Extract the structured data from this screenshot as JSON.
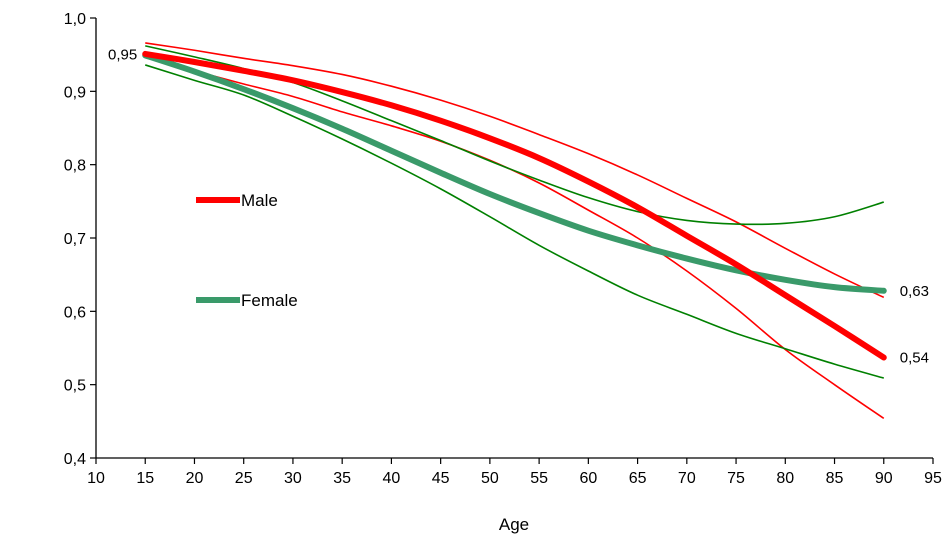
{
  "chart_data": {
    "type": "line",
    "title": "",
    "xlabel": "Age",
    "ylabel": "",
    "xlim": [
      10,
      95
    ],
    "ylim": [
      0.4,
      1.0
    ],
    "x_ticks": [
      10,
      15,
      20,
      25,
      30,
      35,
      40,
      45,
      50,
      55,
      60,
      65,
      70,
      75,
      80,
      85,
      90,
      95
    ],
    "x_tick_labels": [
      "10",
      "15",
      "20",
      "25",
      "30",
      "35",
      "40",
      "45",
      "50",
      "55",
      "60",
      "65",
      "70",
      "75",
      "80",
      "85",
      "90",
      "95"
    ],
    "y_ticks": [
      0.4,
      0.5,
      0.6,
      0.7,
      0.8,
      0.9,
      1.0
    ],
    "y_tick_labels": [
      "0,4",
      "0,5",
      "0,6",
      "0,7",
      "0,8",
      "0,9",
      "1,0"
    ],
    "grid": false,
    "legend_position": "left",
    "x": [
      15,
      20,
      25,
      30,
      35,
      40,
      45,
      50,
      55,
      60,
      65,
      70,
      75,
      80,
      85,
      90
    ],
    "series": [
      {
        "name": "Male",
        "color": "#ff0000",
        "values": [
          0.951,
          0.94,
          0.928,
          0.915,
          0.899,
          0.881,
          0.86,
          0.836,
          0.809,
          0.777,
          0.742,
          0.703,
          0.664,
          0.622,
          0.58,
          0.537
        ],
        "lower": [
          0.946,
          0.928,
          0.91,
          0.893,
          0.872,
          0.853,
          0.832,
          0.806,
          0.775,
          0.738,
          0.7,
          0.655,
          0.604,
          0.548,
          0.5,
          0.454
        ],
        "upper": [
          0.966,
          0.956,
          0.945,
          0.935,
          0.923,
          0.907,
          0.888,
          0.866,
          0.841,
          0.815,
          0.786,
          0.754,
          0.722,
          0.686,
          0.651,
          0.619
        ]
      },
      {
        "name": "Female",
        "color": "#3a9a6a",
        "ci_color": "#008000",
        "values": [
          0.949,
          0.927,
          0.903,
          0.877,
          0.849,
          0.819,
          0.789,
          0.76,
          0.734,
          0.71,
          0.69,
          0.672,
          0.656,
          0.643,
          0.633,
          0.628
        ],
        "lower": [
          0.936,
          0.915,
          0.895,
          0.866,
          0.835,
          0.802,
          0.767,
          0.729,
          0.69,
          0.655,
          0.622,
          0.596,
          0.57,
          0.549,
          0.528,
          0.509
        ],
        "upper": [
          0.962,
          0.947,
          0.931,
          0.912,
          0.887,
          0.86,
          0.833,
          0.805,
          0.779,
          0.755,
          0.736,
          0.724,
          0.719,
          0.72,
          0.729,
          0.749
        ]
      }
    ],
    "annotations": [
      {
        "text": "0,95",
        "x": 15,
        "y": 0.95,
        "series": "Male",
        "side": "left"
      },
      {
        "text": "0,63",
        "x": 90,
        "y": 0.628,
        "series": "Female",
        "side": "right"
      },
      {
        "text": "0,54",
        "x": 90,
        "y": 0.537,
        "series": "Male",
        "side": "right"
      }
    ]
  }
}
